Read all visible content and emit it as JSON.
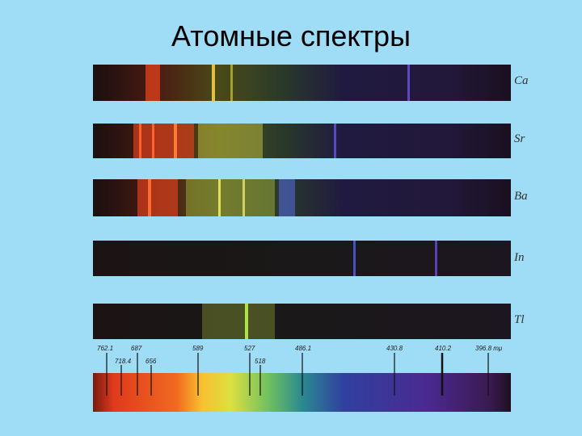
{
  "title": "Атомные спектры",
  "spectra": [
    "Ca",
    "Sr",
    "Ba",
    "In",
    "Tl"
  ],
  "wavelengths": [
    "762.1",
    "718.4",
    "687",
    "656",
    "589",
    "527",
    "518",
    "486.1",
    "430.8",
    "410.2",
    "396.8 mμ"
  ]
}
